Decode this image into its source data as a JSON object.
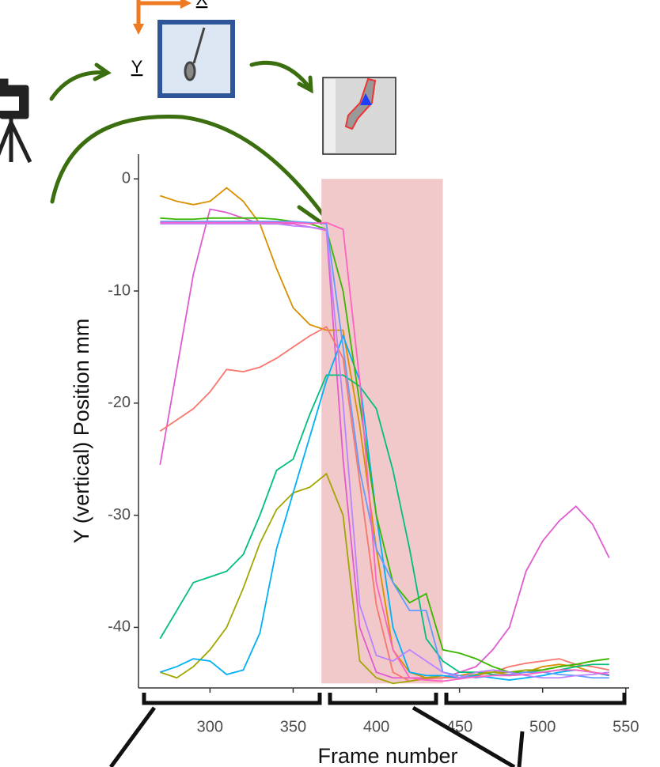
{
  "diagram": {
    "x_axis_label": "X",
    "y_axis_label": "Y"
  },
  "chart_data": {
    "type": "line",
    "x_label": "Frame number",
    "y_label": "Y (vertical) Position mm",
    "xlim": [
      257,
      552
    ],
    "ylim": [
      -45.4,
      2.2
    ],
    "xticks": [
      300,
      350,
      400,
      450,
      500,
      550
    ],
    "yticks": [
      0,
      -10,
      -20,
      -30,
      -40
    ],
    "grid": false,
    "highlight": {
      "x": [
        367,
        440
      ],
      "y": [
        -45,
        0
      ],
      "color": "#f2c9cb"
    },
    "x": [
      270,
      280,
      290,
      300,
      310,
      320,
      330,
      340,
      350,
      360,
      370,
      380,
      390,
      400,
      410,
      420,
      430,
      440,
      450,
      460,
      470,
      480,
      490,
      500,
      510,
      520,
      530,
      540
    ],
    "series": [
      {
        "color": "#e05bd0",
        "values": [
          -25.5,
          -17,
          -8.5,
          -2.7,
          -3,
          -3.5,
          -4,
          -4,
          -4,
          -4.3,
          -4.6,
          -25,
          -40,
          -44,
          -44.5,
          -44.5,
          -44.5,
          -44.5,
          -44,
          -43.5,
          -42,
          -40,
          -35,
          -32.3,
          -30.5,
          -29.2,
          -30.8,
          -33.8
        ]
      },
      {
        "color": "#d89000",
        "values": [
          -1.5,
          -2,
          -2.3,
          -2,
          -0.8,
          -2,
          -4,
          -8,
          -11.5,
          -13,
          -13.5,
          -13.5,
          -22,
          -33,
          -42,
          -44,
          -44.5,
          -44.5,
          -44.3,
          -44,
          -44,
          -44.2,
          -44,
          -43.5,
          -43.3,
          -43.5,
          -44,
          -44.3
        ]
      },
      {
        "color": "#f8766d",
        "values": [
          -22.5,
          -21.5,
          -20.5,
          -19,
          -17,
          -17.2,
          -16.8,
          -16,
          -15,
          -14,
          -13.2,
          -16,
          -27,
          -38,
          -44,
          -44.8,
          -44.6,
          -44.5,
          -44.5,
          -44.3,
          -44,
          -43.5,
          -43.2,
          -43,
          -42.8,
          -43.3,
          -43.5,
          -43.8
        ]
      },
      {
        "color": "#00bf7d",
        "values": [
          -41,
          -38.5,
          -36,
          -35.5,
          -35,
          -33.5,
          -30,
          -26,
          -25,
          -21,
          -17.5,
          -17.5,
          -18.5,
          -20.5,
          -26,
          -33,
          -41,
          -43,
          -44,
          -44,
          -44.2,
          -44.3,
          -44.2,
          -44,
          -43.8,
          -43.5,
          -43.3,
          -43.3
        ]
      },
      {
        "color": "#a3a500",
        "values": [
          -44,
          -44.5,
          -43.5,
          -42,
          -40,
          -36.5,
          -32.5,
          -29.5,
          -28,
          -27.5,
          -26.3,
          -30,
          -43,
          -44.5,
          -45,
          -44.8,
          -44.5,
          -44.3,
          -44.5,
          -44.2,
          -44,
          -44,
          -43.8,
          -43.8,
          -43.5,
          -43.3,
          -43,
          -42.8
        ]
      },
      {
        "color": "#00b0f6",
        "values": [
          -44,
          -43.5,
          -42.8,
          -43,
          -44.2,
          -43.8,
          -40.5,
          -33,
          -28,
          -23,
          -18,
          -14,
          -18,
          -30,
          -40,
          -44,
          -44.3,
          -44.3,
          -44.5,
          -44.3,
          -44.5,
          -44.7,
          -44.5,
          -44.3,
          -44,
          -43.8,
          -44,
          -44.3
        ]
      },
      {
        "color": "#39b600",
        "values": [
          -3.5,
          -3.6,
          -3.6,
          -3.5,
          -3.5,
          -3.5,
          -3.5,
          -3.6,
          -3.8,
          -4,
          -4.5,
          -10,
          -20,
          -30,
          -36,
          -37.8,
          -37,
          -42,
          -42.3,
          -42.8,
          -43.5,
          -44,
          -44,
          -43.8,
          -43.5,
          -43.3,
          -43,
          -42.8
        ]
      },
      {
        "color": "#619cff",
        "values": [
          -3.8,
          -3.8,
          -3.8,
          -3.8,
          -3.8,
          -3.8,
          -3.8,
          -3.8,
          -3.8,
          -3.9,
          -4,
          -15,
          -26,
          -33,
          -36,
          -38.5,
          -38.5,
          -44,
          -44.3,
          -44.5,
          -44.3,
          -44.2,
          -44,
          -44,
          -44.2,
          -44.3,
          -44.5,
          -44.5
        ]
      },
      {
        "color": "#b983ff",
        "values": [
          -4,
          -4,
          -4,
          -4,
          -4,
          -4,
          -4,
          -4,
          -4.2,
          -4.3,
          -4.5,
          -20,
          -38,
          -42.5,
          -43,
          -42,
          -43,
          -44,
          -44.5,
          -44,
          -43.8,
          -44,
          -44.3,
          -44.5,
          -44.5,
          -44.3,
          -44.2,
          -44
        ]
      },
      {
        "color": "#ff61c3",
        "values": [
          -3.9,
          -3.9,
          -3.9,
          -3.9,
          -3.9,
          -3.9,
          -3.9,
          -3.9,
          -3.9,
          -4,
          -3.9,
          -4.5,
          -18,
          -36,
          -42,
          -44.5,
          -44.7,
          -44.8,
          -44.6,
          -44.4,
          -44.3,
          -44.3,
          -44.2,
          -44,
          -43.8,
          -43.8,
          -44,
          -44.2
        ]
      }
    ]
  }
}
